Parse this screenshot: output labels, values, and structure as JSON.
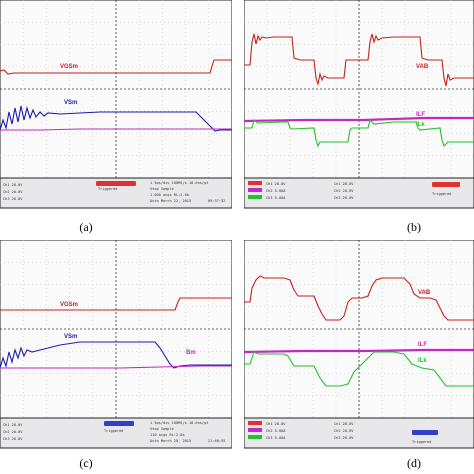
{
  "figure": {
    "panels": [
      {
        "caption": "(a)",
        "traces": [
          {
            "label": "VGSm",
            "color": "#c8201e"
          },
          {
            "label": "VSm",
            "color": "#1b1faa"
          }
        ],
        "status": {
          "ch_lines": [
            "Ch1 20.0V",
            "Ch2 20.0V",
            "Ch3 20.0V"
          ],
          "trig_box": "Triggered",
          "mid_lines": [
            "1 5ps/div  100MS/s  10.0ns/pt",
            "Stop    Sample",
            "1.000 acqs    RL:2.0k",
            "Auto    March 22, 2015"
          ],
          "time": "09:37:32"
        }
      },
      {
        "caption": "(b)",
        "traces": [
          {
            "label": "VAB",
            "color": "#c8201e"
          },
          {
            "label": "ILF",
            "color": "#c02ac0"
          },
          {
            "label": "ILk",
            "color": "#27c02a"
          }
        ],
        "status": {
          "ch_lines": [
            "Ch1 20.0V",
            "Ch2 5.00A",
            "Ch3 5.00A"
          ],
          "trig_box": "Triggered",
          "mid_lines": [
            "Ch1 20.0V",
            "Ch2 20.0V",
            "Ch3 20.0V"
          ],
          "time": ""
        }
      },
      {
        "caption": "(c)",
        "traces": [
          {
            "label": "VGSm",
            "color": "#c8201e"
          },
          {
            "label": "VSm",
            "color": "#1b1faa"
          },
          {
            "label": "Bm",
            "color": "#c02ac0"
          }
        ],
        "status": {
          "ch_lines": [
            "Ch1 20.0V",
            "Ch2 20.0V",
            "Ch3 20.0V"
          ],
          "trig_box": "Triggered",
          "mid_lines": [
            "1 5ps/div  100MS/s  10.0ns/pt",
            "Stop    Sample",
            "110 acqs    RL:2.0k",
            "Auto    March 20, 2015"
          ],
          "time": "21:48:55"
        }
      },
      {
        "caption": "(d)",
        "traces": [
          {
            "label": "VAB",
            "color": "#c8201e"
          },
          {
            "label": "ILF",
            "color": "#c02ac0"
          },
          {
            "label": "ILk",
            "color": "#27c02a"
          }
        ],
        "status": {
          "ch_lines": [
            "Ch1 20.0V",
            "Ch2 5.00A",
            "Ch3 5.00A"
          ],
          "trig_box": "Triggered",
          "mid_lines": [
            "Ch1 20.0V",
            "Ch2 20.0V",
            "Ch3 20.0V"
          ],
          "time": ""
        }
      }
    ]
  }
}
